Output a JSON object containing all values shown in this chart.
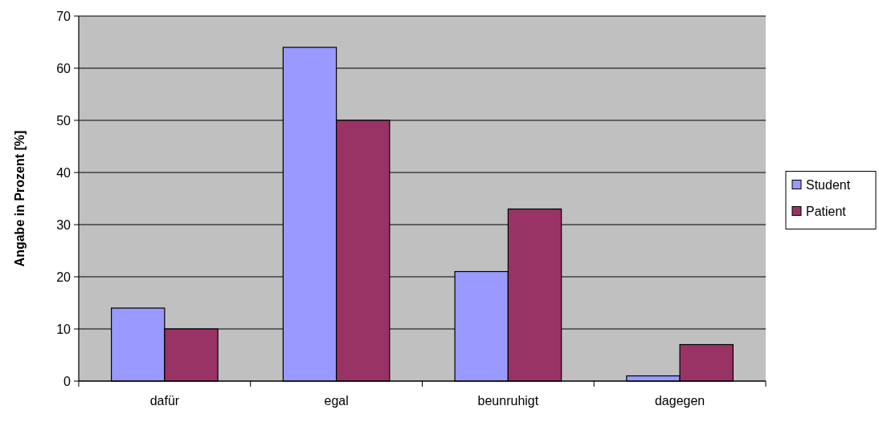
{
  "chart_data": {
    "type": "bar",
    "ylabel": "Angabe in Prozent [%]",
    "categories": [
      "dafür",
      "egal",
      "beunruhigt",
      "dagegen"
    ],
    "series": [
      {
        "name": "Student",
        "color": "#9999ff",
        "values": [
          14,
          64,
          21,
          1
        ]
      },
      {
        "name": "Patient",
        "color": "#993366",
        "values": [
          10,
          50,
          33,
          7
        ]
      }
    ],
    "ylim": [
      0,
      70
    ],
    "yticks": [
      0,
      10,
      20,
      30,
      40,
      50,
      60,
      70
    ],
    "grid": "y",
    "legend": "right"
  }
}
